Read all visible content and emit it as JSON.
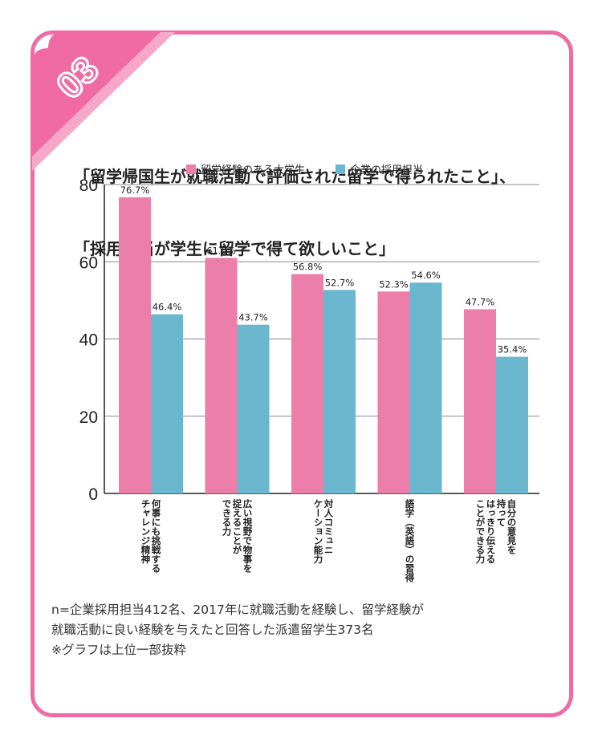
{
  "badge": {
    "number": "03"
  },
  "title": {
    "line1": "「留学帰国生が就職活動で評価された留学で得られたこと」、",
    "line2": "「採用担当が学生に留学で得て欲しいこと」"
  },
  "colors": {
    "pink": "#ec7fa9",
    "blue": "#6cb7d0",
    "border": "#f06aa4"
  },
  "chart_data": {
    "type": "bar",
    "categories": [
      [
        "何事にも挑戦する",
        "チャレンジ精神"
      ],
      [
        "広い視野で物事を",
        "捉えることが",
        "できる力"
      ],
      [
        "対人コミュニ",
        "ケーション能力"
      ],
      [
        "語学（英語）の習得"
      ],
      [
        "自分の意見を",
        "持って",
        "はっきり伝える",
        "ことができる力"
      ]
    ],
    "series": [
      {
        "name": "留学経験のある大学生",
        "values": [
          76.7,
          61.0,
          56.8,
          52.3,
          47.7
        ],
        "labels": [
          "76.7%",
          "61.0%",
          "56.8%",
          "52.3%",
          "47.7%"
        ]
      },
      {
        "name": "企業の採用担当",
        "values": [
          46.4,
          43.7,
          52.7,
          54.6,
          35.4
        ],
        "labels": [
          "46.4%",
          "43.7%",
          "52.7%",
          "54.6%",
          "35.4%"
        ]
      }
    ],
    "yticks": [
      "0",
      "20",
      "40",
      "60",
      "80"
    ],
    "ylim": [
      0,
      80
    ],
    "grid": true,
    "legend": "top"
  },
  "notes": {
    "line1": "n=企業採用担当412名、2017年に就職活動を経験し、留学経験が",
    "line2": "就職活動に良い経験を与えたと回答した派遣留学生373名",
    "line3": "※グラフは上位一部抜粋"
  }
}
